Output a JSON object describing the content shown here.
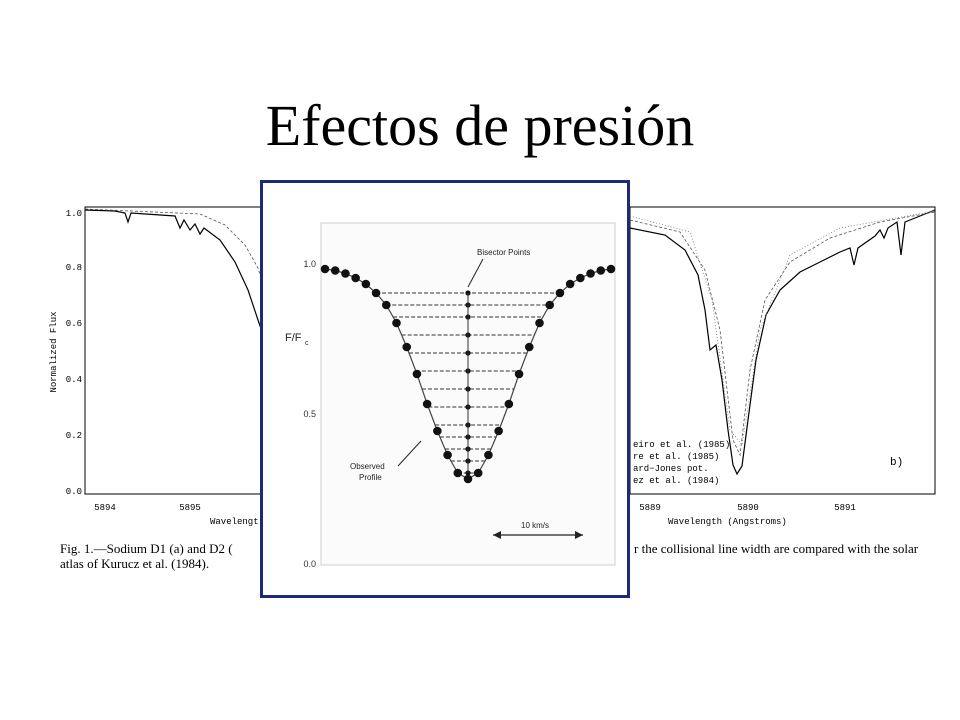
{
  "slide": {
    "title": "Efectos de presión"
  },
  "background_figure": {
    "caption_line1": "Fig. 1.—Sodium D1 (a) and D2 (",
    "caption_line1_end": "r the collisional line width are compared with the solar",
    "caption_line2": "atlas of Kurucz et al. (1984).",
    "panel_a": {
      "ylabel": "Normalized Flux",
      "xlabel": "Wavelengt",
      "y_ticks": [
        "1.0",
        "0.8",
        "0.6",
        "0.4",
        "0.2",
        "0.0"
      ],
      "x_ticks": [
        "5894",
        "5895"
      ]
    },
    "panel_b": {
      "xlabel": "Wavelength (Angstroms)",
      "x_ticks": [
        "5889",
        "5890",
        "5891"
      ],
      "label": "b)",
      "legend": [
        "eiro et al. (1985)",
        "re et al. (1985)",
        "ard−Jones pot.",
        "ez et al. (1984)"
      ]
    }
  },
  "inset": {
    "ylabel": "F/F",
    "ylabel_sub": "c",
    "y_ticks": [
      "1.0",
      "0.5",
      "0.0"
    ],
    "bisector_label": "Bisector Points",
    "profile_label_1": "Observed",
    "profile_label_2": "Profile",
    "scale_label": "10 km/s"
  },
  "chart_data": [
    {
      "type": "line",
      "title": "",
      "xlabel": "",
      "ylabel": "F/Fc",
      "ylim": [
        0.0,
        1.05
      ],
      "x": [
        -14,
        -13,
        -12,
        -11,
        -10,
        -9,
        -8,
        -7,
        -6,
        -5,
        -4,
        -3,
        -2,
        -1,
        0,
        1,
        2,
        3,
        4,
        5,
        6,
        7,
        8,
        9,
        10,
        11,
        12,
        13,
        14
      ],
      "series": [
        {
          "name": "Observed Profile",
          "values": [
            0.98,
            0.975,
            0.965,
            0.95,
            0.93,
            0.9,
            0.86,
            0.8,
            0.72,
            0.63,
            0.53,
            0.44,
            0.36,
            0.3,
            0.28,
            0.3,
            0.36,
            0.44,
            0.53,
            0.63,
            0.72,
            0.8,
            0.86,
            0.9,
            0.93,
            0.95,
            0.965,
            0.975,
            0.98
          ]
        }
      ],
      "bisector_levels": [
        0.3,
        0.34,
        0.38,
        0.42,
        0.46,
        0.52,
        0.58,
        0.64,
        0.7,
        0.76,
        0.82,
        0.86,
        0.9
      ],
      "annotations": [
        "Bisector Points",
        "Observed Profile",
        "10 km/s"
      ],
      "grid": false
    }
  ],
  "colors": {
    "frame": "#1e2a78"
  }
}
